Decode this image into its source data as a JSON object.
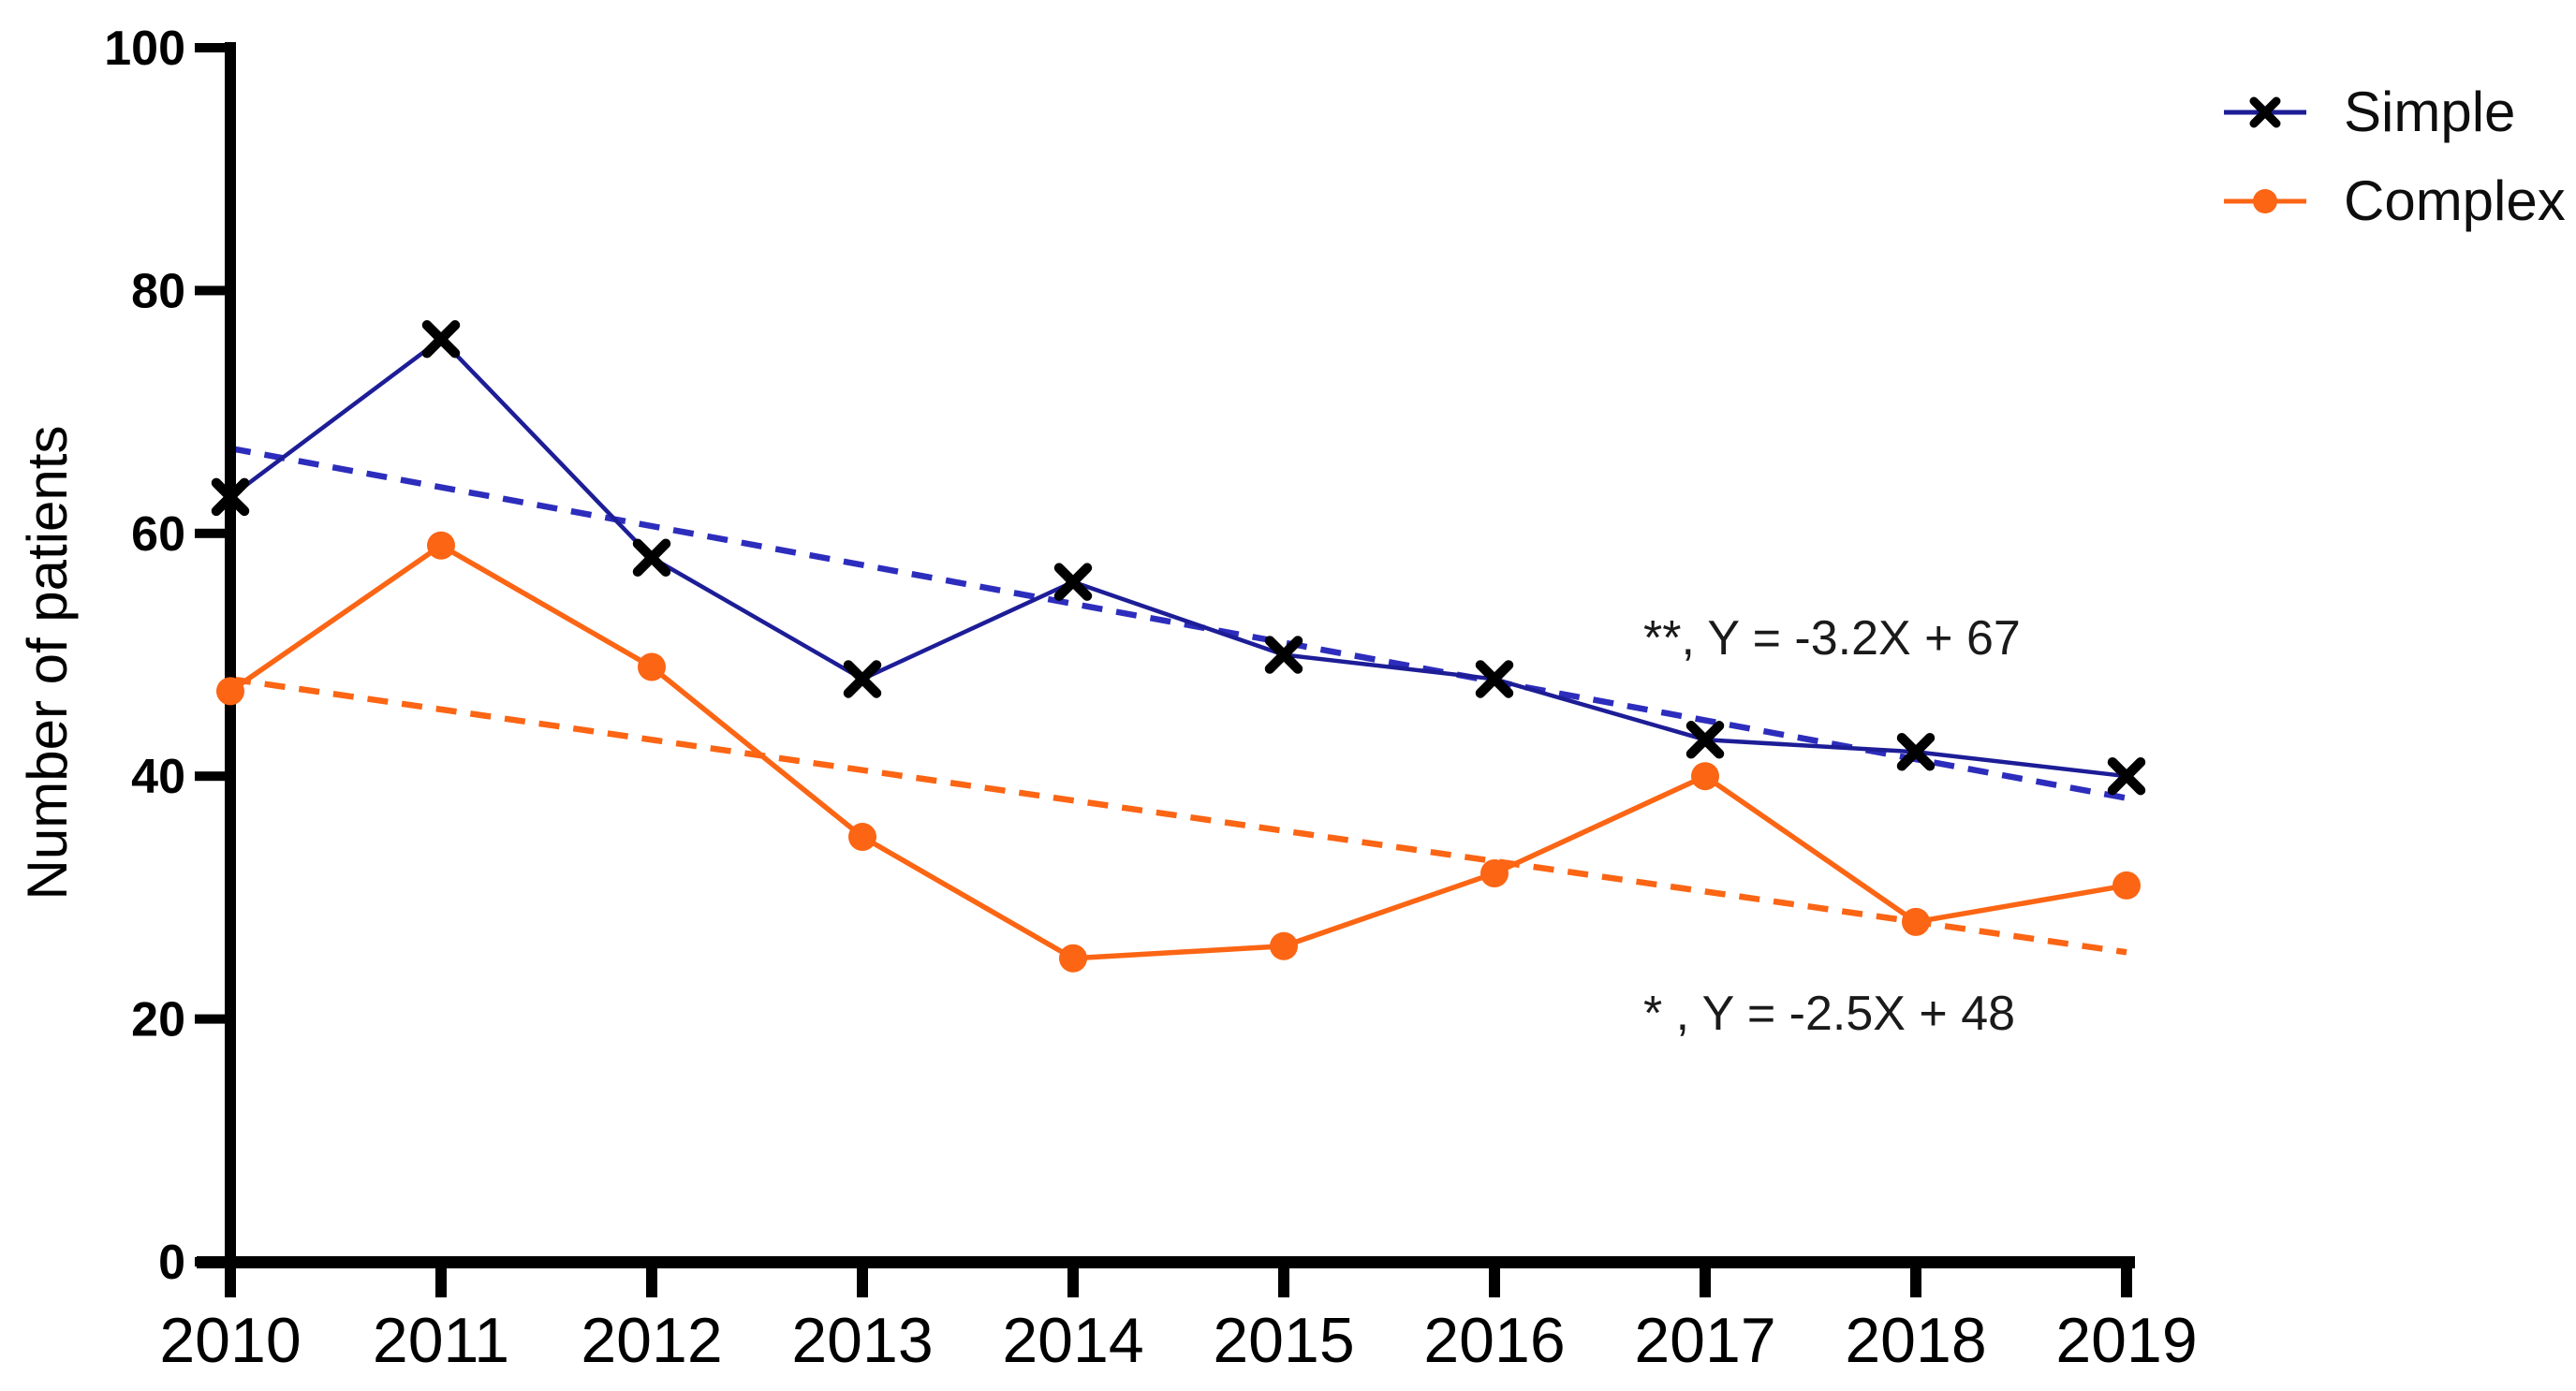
{
  "figure": {
    "background": "#ffffff",
    "axis_color": "#000000",
    "text_color": "#000000"
  },
  "chart_data": {
    "type": "line",
    "title": "",
    "xlabel": "",
    "ylabel": "Number of patients",
    "categories": [
      "2010",
      "2011",
      "2012",
      "2013",
      "2014",
      "2015",
      "2016",
      "2017",
      "2018",
      "2019"
    ],
    "y_ticks": [
      "0",
      "20",
      "40",
      "60",
      "80",
      "100"
    ],
    "ylim": [
      0,
      100
    ],
    "grid": false,
    "legend_position": "top-right",
    "series": [
      {
        "name": "Simple",
        "line_color": "#1d1d97",
        "line_style": "solid",
        "marker": "x",
        "marker_color": "#000000",
        "values": [
          63,
          76,
          58,
          48,
          56,
          50,
          48,
          43,
          42,
          40
        ],
        "trend": {
          "significance": "**",
          "equation": "Y = -3.2X + 67",
          "label": "**, Y = -3.2X + 67",
          "slope": -3.2,
          "intercept": 67,
          "line_style": "dashed",
          "color": "#2d2dbd"
        }
      },
      {
        "name": "Complex",
        "line_color": "#fb6514",
        "line_style": "solid",
        "marker": "circle",
        "marker_color": "#fb6514",
        "values": [
          47,
          59,
          49,
          35,
          25,
          26,
          32,
          40,
          28,
          31
        ],
        "trend": {
          "significance": "*",
          "equation": "Y = -2.5X + 48",
          "label": "* , Y = -2.5X + 48",
          "slope": -2.5,
          "intercept": 48,
          "line_style": "dashed",
          "color": "#fb6514"
        }
      }
    ]
  }
}
